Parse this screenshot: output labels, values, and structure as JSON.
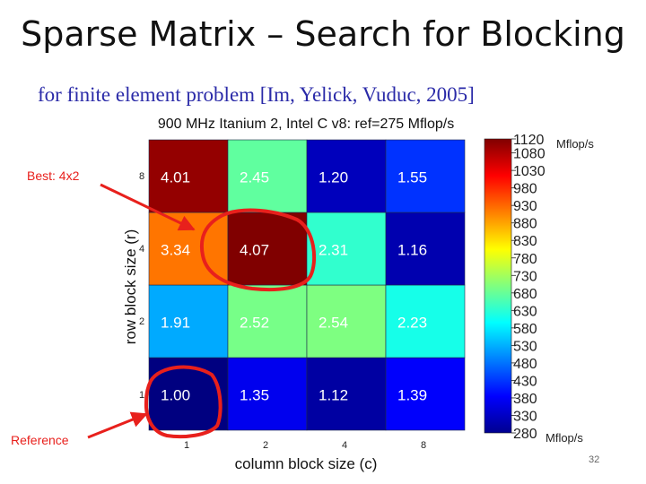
{
  "slide": {
    "title": "Sparse Matrix – Search for Blocking",
    "subtitle": "for finite element problem [Im, Yelick, Vuduc, 2005]",
    "page_number": "32"
  },
  "chart_data": {
    "type": "heatmap",
    "title": "900 MHz Itanium 2, Intel C v8: ref=275 Mflop/s",
    "xlabel": "column block size (c)",
    "ylabel": "row block size (r)",
    "x_categories": [
      "1",
      "2",
      "4",
      "8"
    ],
    "y_categories": [
      "1",
      "2",
      "4",
      "8"
    ],
    "values": [
      [
        1.0,
        1.35,
        1.12,
        1.39
      ],
      [
        1.91,
        2.52,
        2.54,
        2.23
      ],
      [
        3.34,
        4.07,
        2.31,
        1.16
      ],
      [
        4.01,
        2.45,
        1.2,
        1.55
      ]
    ],
    "value_labels": [
      [
        "1.00",
        "1.35",
        "1.12",
        "1.39"
      ],
      [
        "1.91",
        "2.52",
        "2.54",
        "2.23"
      ],
      [
        "3.34",
        "4.07",
        "2.31",
        "1.16"
      ],
      [
        "4.01",
        "2.45",
        "1.20",
        "1.55"
      ]
    ],
    "reference_mflops": 275,
    "colorbar": {
      "min": 280,
      "max": 1120,
      "ticks": [
        1120,
        1080,
        1030,
        980,
        930,
        880,
        830,
        780,
        730,
        680,
        630,
        580,
        530,
        480,
        430,
        380,
        330,
        280
      ],
      "unit_label": "Mflop/s"
    },
    "annotations": [
      {
        "text": "Best: 4x2",
        "target_row": "4",
        "target_col": "2",
        "color": "#e8201c"
      },
      {
        "text": "Reference",
        "target_row": "1",
        "target_col": "1",
        "color": "#e8201c"
      }
    ]
  }
}
